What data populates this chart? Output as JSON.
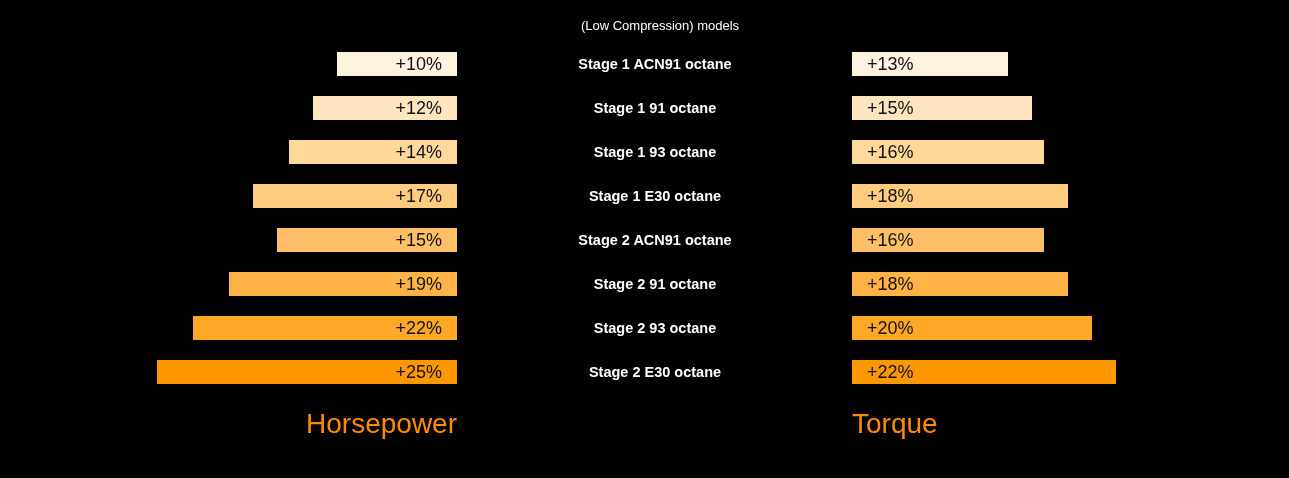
{
  "chart_data": [
    {
      "type": "bar",
      "orientation": "horizontal",
      "title": "(Low Compression) models",
      "xlabel": "Horsepower",
      "categories": [
        "Stage 1 ACN91 octane",
        "Stage 1 91 octane",
        "Stage 1 93 octane",
        "Stage 1 E30 octane",
        "Stage 2 ACN91 octane",
        "Stage 2 91 octane",
        "Stage 2 93 octane",
        "Stage 2 E30 octane"
      ],
      "values": [
        10,
        12,
        14,
        17,
        15,
        19,
        22,
        25
      ],
      "value_labels": [
        "+10%",
        "+12%",
        "+14%",
        "+17%",
        "+15%",
        "+19%",
        "+22%",
        "+25%"
      ],
      "colors": [
        "#fff3e0",
        "#ffe5c0",
        "#ffd89a",
        "#ffcc80",
        "#ffbf66",
        "#ffb347",
        "#ffa726",
        "#ff9800"
      ],
      "xlim": [
        25,
        0
      ],
      "tick_labels": "y"
    },
    {
      "type": "bar",
      "orientation": "horizontal",
      "xlabel": "Torque",
      "categories": [
        null,
        null,
        null,
        null,
        null,
        null,
        null,
        null
      ],
      "values": [
        13,
        15,
        16,
        18,
        16,
        18,
        20,
        22
      ],
      "value_labels": [
        "+13%",
        "+15%",
        "+16%",
        "+18%",
        "+16%",
        "+18%",
        "+20%",
        "+22%"
      ],
      "colors": [
        "#fff3e0",
        "#ffe5c0",
        "#ffd89a",
        "#ffcc80",
        "#ffbf66",
        "#ffb347",
        "#ffa726",
        "#ff9800"
      ],
      "tick_labels": false
    }
  ]
}
